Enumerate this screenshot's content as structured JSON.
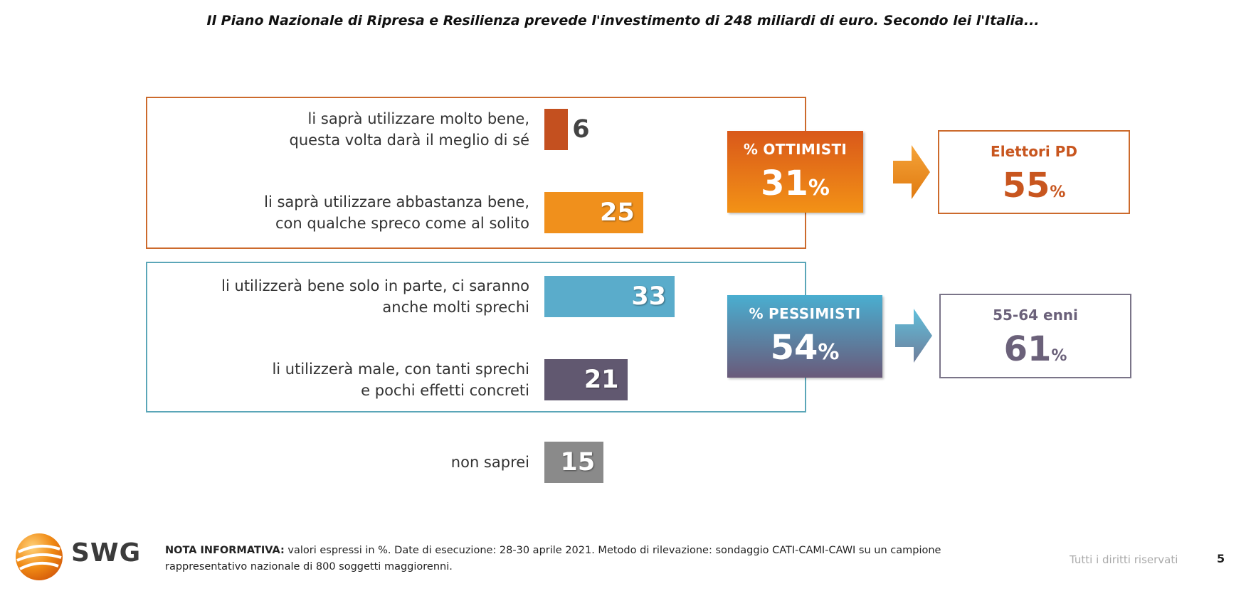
{
  "title": "Il Piano Nazionale di Ripresa e Resilienza prevede l'investimento di 248 miliardi di euro. Secondo lei l'Italia...",
  "chart_data": {
    "type": "bar",
    "orientation": "horizontal",
    "categories": [
      "li saprà utilizzare molto bene, questa volta darà il meglio di sé",
      "li saprà utilizzare abbastanza bene, con qualche spreco come al solito",
      "li utilizzerà bene solo in parte, ci saranno anche molti sprechi",
      "li utilizzerà male, con tanti sprechi e pochi effetti concreti",
      "non saprei"
    ],
    "category_lines": [
      [
        "li saprà utilizzare molto bene,",
        "questa volta darà il meglio di sé"
      ],
      [
        "li saprà utilizzare abbastanza bene,",
        "con qualche spreco come al solito"
      ],
      [
        "li utilizzerà bene solo in parte, ci saranno",
        "anche molti sprechi"
      ],
      [
        "li utilizzerà male, con tanti sprechi",
        "e pochi effetti concreti"
      ],
      [
        "non saprei"
      ]
    ],
    "values": [
      6,
      25,
      33,
      21,
      15
    ],
    "colors": [
      "#c4501f",
      "#f0901c",
      "#5aaccb",
      "#615870",
      "#8a8a8a"
    ],
    "unit": "%"
  },
  "summaries": [
    {
      "label": "% OTTIMISTI",
      "value": "31",
      "unit": "%",
      "color_top": "#d9581a",
      "color_bottom": "#f39216",
      "highlight": {
        "label": "Elettori PD",
        "value": "55",
        "unit": "%",
        "color": "#c8561f"
      }
    },
    {
      "label": "% PESSIMISTI",
      "value": "54",
      "unit": "%",
      "color_top": "#4aaed0",
      "color_bottom": "#6a5a7a",
      "highlight": {
        "label": "55-64 enni",
        "value": "61",
        "unit": "%",
        "color": "#6b617a"
      }
    }
  ],
  "colors": {
    "optimists_border": "#cc6a2c",
    "pessimists_border": "#5ba6b8"
  },
  "footer": {
    "logo_text": "SWG",
    "note_label": "NOTA INFORMATIVA:",
    "note_text": " valori espressi in %. Date di esecuzione: 28-30 aprile 2021. Metodo di rilevazione: sondaggio CATI-CAMI-CAWI su un campione rappresentativo nazionale di 800 soggetti maggiorenni.",
    "rights": "Tutti i diritti riservati",
    "page_number": "5"
  }
}
